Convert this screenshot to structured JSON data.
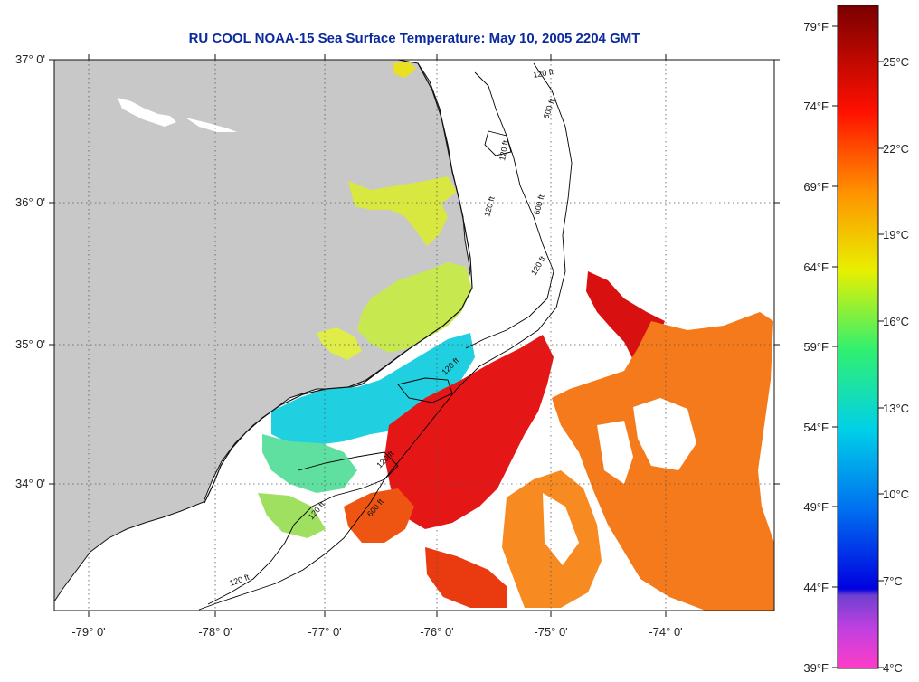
{
  "title": "RU COOL  NOAA-15  Sea Surface Temperature:  May 10, 2005 2204 GMT",
  "axes": {
    "latitude_labels": [
      "37° 0'",
      "36° 0'",
      "35° 0'",
      "34° 0'"
    ],
    "longitude_labels": [
      "-79° 0'",
      "-78° 0'",
      "-77° 0'",
      "-76° 0'",
      "-75° 0'",
      "-74° 0'"
    ]
  },
  "contour_labels": [
    "120 ft",
    "600 ft",
    "120 ft",
    "120 ft",
    "600 ft",
    "120 ft",
    "120 ft",
    "120 ft",
    "120 ft",
    "600 ft",
    "120 ft"
  ],
  "colorbar": {
    "fahrenheit_labels": [
      "79°F",
      "74°F",
      "69°F",
      "64°F",
      "59°F",
      "54°F",
      "49°F",
      "44°F",
      "39°F"
    ],
    "celsius_labels": [
      "25°C",
      "22°C",
      "19°C",
      "16°C",
      "13°C",
      "10°C",
      "7°C",
      "4°C"
    ]
  },
  "colors": {
    "land": "#c8c8c8",
    "title": "#0b2a9e",
    "sst_warm": "#e01010",
    "sst_cool": "#20c8e8"
  }
}
